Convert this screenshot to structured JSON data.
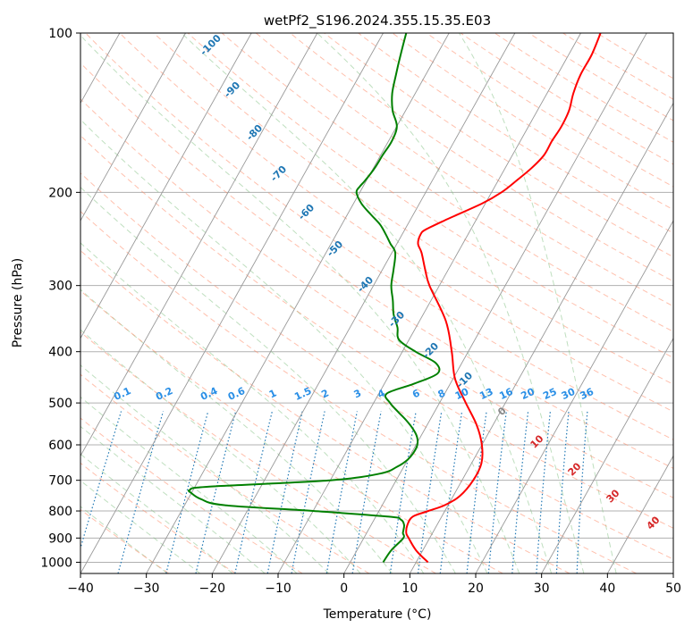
{
  "chart_data": {
    "type": "skew-t",
    "title": "wetPf2_S196.2024.355.15.35.E03",
    "xlabel": "Temperature (°C)",
    "ylabel": "Pressure (hPa)",
    "xlim": [
      -40,
      50
    ],
    "ylim": [
      1050,
      100
    ],
    "y_scale": "log",
    "grid": true,
    "x_ticks": [
      -40,
      -30,
      -20,
      -10,
      0,
      10,
      20,
      30,
      40,
      50
    ],
    "y_ticks": [
      1000,
      900,
      800,
      700,
      600,
      500,
      400,
      300,
      200,
      100
    ],
    "dry_adiabat_labels": [
      "-100",
      "-90",
      "-80",
      "-70",
      "-60",
      "-50",
      "-40",
      "-30",
      "-20",
      "-10",
      "0",
      "10",
      "20",
      "30",
      "40"
    ],
    "mixing_ratio_labels": [
      "0.1",
      "0.2",
      "0.4",
      "0.6",
      "1",
      "1.5",
      "2",
      "3",
      "4",
      "6",
      "8",
      "10",
      "13",
      "16",
      "20",
      "25",
      "30",
      "36"
    ],
    "colors": {
      "temperature": "#ff0000",
      "dewpoint": "#008000",
      "dry_adiabat": "#ff8c69",
      "moist_adiabat": "#7fbf7f",
      "mixing_ratio": "#1f77b4",
      "isotherm": "#999999",
      "dry_adiabat_label": "#1f77b4",
      "warm_label": "#d62728"
    },
    "series": [
      {
        "key": "temperature",
        "p": [
          1000,
          950,
          900,
          880,
          850,
          820,
          800,
          780,
          750,
          700,
          650,
          600,
          550,
          500,
          450,
          400,
          350,
          300,
          280,
          260,
          250,
          240,
          235,
          225,
          210,
          200,
          190,
          180,
          170,
          160,
          150,
          140,
          130,
          120,
          110,
          100
        ],
        "t": [
          11.8,
          9.0,
          6.8,
          6.0,
          5.5,
          5.6,
          7.5,
          9.5,
          11.0,
          11.7,
          11.5,
          10.0,
          7.5,
          4.0,
          0.3,
          -2.5,
          -6.0,
          -11.5,
          -13.5,
          -15.5,
          -16.8,
          -17.2,
          -16.8,
          -14.5,
          -10.5,
          -8.5,
          -7.2,
          -6.0,
          -5.2,
          -5.2,
          -5.0,
          -5.2,
          -6.0,
          -6.5,
          -6.5,
          -7.0
        ]
      },
      {
        "key": "dewpoint",
        "p": [
          1000,
          950,
          900,
          880,
          850,
          830,
          820,
          800,
          780,
          760,
          740,
          730,
          720,
          700,
          680,
          660,
          640,
          620,
          600,
          580,
          560,
          540,
          520,
          500,
          480,
          460,
          440,
          420,
          400,
          380,
          360,
          340,
          320,
          300,
          280,
          260,
          250,
          240,
          230,
          220,
          210,
          200,
          195,
          190,
          180,
          170,
          160,
          150,
          140,
          130,
          120,
          110,
          100
        ],
        "t": [
          5.0,
          5.2,
          6.0,
          5.5,
          5.0,
          4.0,
          2.0,
          -10.0,
          -24.0,
          -28.0,
          -30.0,
          -30.5,
          -28.0,
          -10.0,
          -3.0,
          -1.0,
          0.0,
          0.3,
          0.2,
          -0.5,
          -1.8,
          -3.5,
          -5.5,
          -7.5,
          -8.8,
          -5.5,
          -2.8,
          -4.0,
          -8.0,
          -11.5,
          -12.8,
          -14.5,
          -15.8,
          -17.3,
          -18.3,
          -19.5,
          -21.0,
          -22.5,
          -24.2,
          -26.5,
          -28.8,
          -30.5,
          -30.5,
          -30.2,
          -29.8,
          -29.7,
          -29.5,
          -30.0,
          -32.0,
          -33.5,
          -34.5,
          -35.5,
          -36.5
        ]
      }
    ]
  }
}
